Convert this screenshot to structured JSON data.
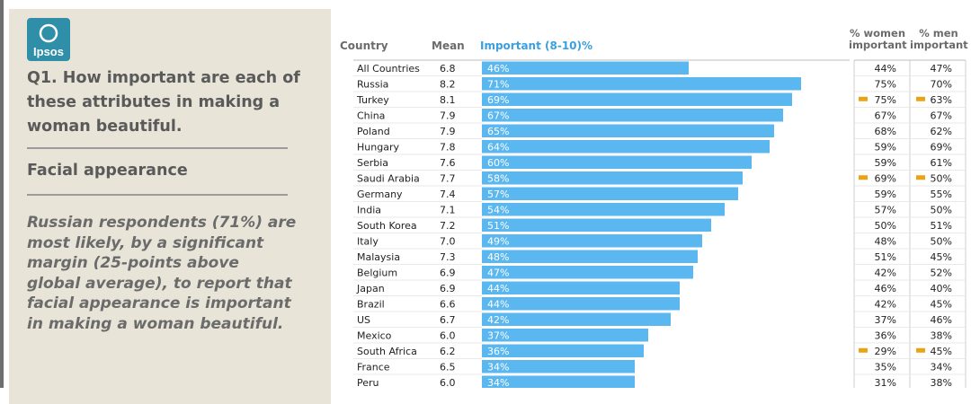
{
  "brand": {
    "logo_text": "Ipsos",
    "logo_color": "#2f8fa8"
  },
  "left_panel": {
    "question": "Q1. How important are each of these attributes in making a woman beautiful.",
    "section": "Facial appearance",
    "commentary": "Russian respondents (71%) are most likely, by a significant margin (25-points above global average), to report that facial appearance is important in making a woman beautiful."
  },
  "headers": {
    "country": "Country",
    "mean": "Mean",
    "important": "Important (8-10)%",
    "women": "% women important",
    "men": "% men important"
  },
  "colors": {
    "bar": "#5bb7f0",
    "flag": "#e8a317",
    "header_blue": "#3a9fe0"
  },
  "chart_data": {
    "type": "bar",
    "orientation": "horizontal",
    "xlim": [
      0,
      100
    ],
    "categories": [
      "All Countries",
      "Russia",
      "Turkey",
      "China",
      "Poland",
      "Hungary",
      "Serbia",
      "Saudi Arabia",
      "Germany",
      "India",
      "South Korea",
      "Italy",
      "Malaysia",
      "Belgium",
      "Japan",
      "Brazil",
      "US",
      "Mexico",
      "South Africa",
      "France",
      "Peru"
    ],
    "mean": [
      "6.8",
      "8.2",
      "8.1",
      "7.9",
      "7.9",
      "7.8",
      "7.6",
      "7.7",
      "7.4",
      "7.1",
      "7.2",
      "7.0",
      "7.3",
      "6.9",
      "6.9",
      "6.6",
      "6.7",
      "6.0",
      "6.2",
      "6.5",
      "6.0"
    ],
    "values": [
      46,
      71,
      69,
      67,
      65,
      64,
      60,
      58,
      57,
      54,
      51,
      49,
      48,
      47,
      44,
      44,
      42,
      37,
      36,
      34,
      34
    ],
    "labels": [
      "46%",
      "71%",
      "69%",
      "67%",
      "65%",
      "64%",
      "60%",
      "58%",
      "57%",
      "54%",
      "51%",
      "49%",
      "48%",
      "47%",
      "44%",
      "44%",
      "42%",
      "37%",
      "36%",
      "34%",
      "34%"
    ],
    "women": [
      "44%",
      "75%",
      "75%",
      "67%",
      "68%",
      "59%",
      "59%",
      "69%",
      "59%",
      "57%",
      "50%",
      "48%",
      "51%",
      "42%",
      "46%",
      "42%",
      "37%",
      "36%",
      "29%",
      "35%",
      "31%"
    ],
    "men": [
      "47%",
      "70%",
      "63%",
      "67%",
      "62%",
      "69%",
      "61%",
      "50%",
      "55%",
      "50%",
      "51%",
      "50%",
      "45%",
      "52%",
      "40%",
      "45%",
      "46%",
      "38%",
      "45%",
      "34%",
      "38%"
    ],
    "women_flag": [
      false,
      false,
      true,
      false,
      false,
      false,
      false,
      true,
      false,
      false,
      false,
      false,
      false,
      false,
      false,
      false,
      false,
      false,
      true,
      false,
      false
    ],
    "men_flag": [
      false,
      false,
      true,
      false,
      false,
      false,
      false,
      true,
      false,
      false,
      false,
      false,
      false,
      false,
      false,
      false,
      false,
      false,
      true,
      false,
      false
    ]
  }
}
